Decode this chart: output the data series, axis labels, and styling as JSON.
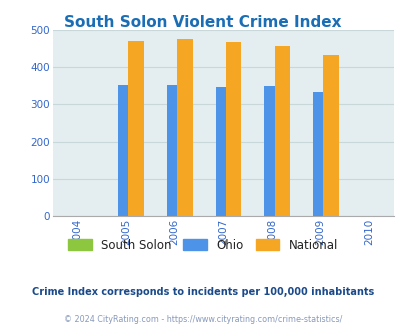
{
  "title": "South Solon Violent Crime Index",
  "years": [
    2004,
    2005,
    2006,
    2007,
    2008,
    2009,
    2010
  ],
  "bar_years": [
    2005,
    2006,
    2007,
    2008,
    2009
  ],
  "south_solon": [
    0,
    0,
    0,
    0,
    0
  ],
  "ohio": [
    352,
    352,
    347,
    350,
    332
  ],
  "national": [
    469,
    474,
    467,
    455,
    432
  ],
  "color_south_solon": "#8dc63f",
  "color_ohio": "#4d94e8",
  "color_national": "#f5a623",
  "bg_color": "#e4eef0",
  "ylim": [
    0,
    500
  ],
  "yticks": [
    0,
    100,
    200,
    300,
    400,
    500
  ],
  "title_color": "#1a6eb5",
  "title_fontsize": 11,
  "tick_color": "#3366cc",
  "grid_color": "#c8d8da",
  "subtitle": "Crime Index corresponds to incidents per 100,000 inhabitants",
  "subtitle_color": "#1a4a8a",
  "copyright": "© 2024 CityRating.com - https://www.cityrating.com/crime-statistics/",
  "copyright_color": "#8899bb",
  "bar_width": 0.32,
  "legend_labels": [
    "South Solon",
    "Ohio",
    "National"
  ]
}
